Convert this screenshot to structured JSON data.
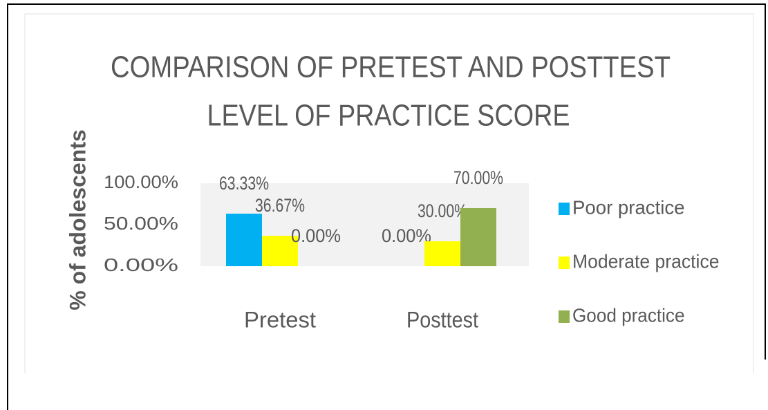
{
  "chart_data": {
    "type": "bar",
    "title": [
      "COMPARISON OF PRETEST AND POSTTEST",
      "LEVEL OF  PRACTICE SCORE"
    ],
    "y_label": "% of adolescents",
    "categories": [
      "Pretest",
      "Posttest"
    ],
    "series": [
      {
        "name": "Poor practice",
        "color": "#00b0f0",
        "values": [
          63.33,
          0
        ],
        "value_labels": [
          "63.33%",
          "0.00%"
        ]
      },
      {
        "name": "Moderate practice",
        "color": "#ffff00",
        "values": [
          36.67,
          30
        ],
        "value_labels": [
          "36.67%",
          "30.00%"
        ]
      },
      {
        "name": "Good practice",
        "color": "#92b050",
        "values": [
          0,
          70
        ],
        "value_labels": [
          "0.00%",
          "70.00%"
        ]
      }
    ],
    "ylim": [
      0,
      100
    ],
    "yticks": [
      {
        "value": 0,
        "label": "0.00%"
      },
      {
        "value": 50,
        "label": "50.00%"
      },
      {
        "value": 100,
        "label": "100.00%"
      }
    ],
    "legend": "right"
  }
}
